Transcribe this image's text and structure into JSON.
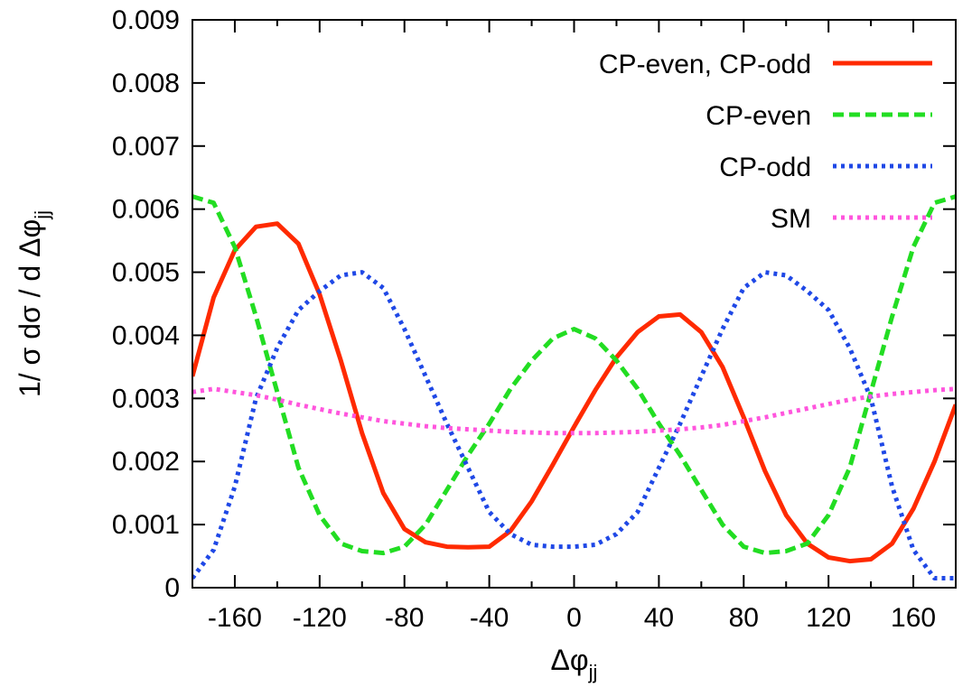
{
  "chart_data": {
    "type": "line",
    "title": "",
    "xlabel": "Δφjj",
    "xlabel_main": "Δφ",
    "xlabel_sub": "jj",
    "ylabel": "1/ σ dσ / d Δφjj",
    "ylabel_main": "1/ σ dσ / d Δφ",
    "ylabel_sub": "jj",
    "xlim": [
      -180,
      180
    ],
    "ylim": [
      0,
      0.009
    ],
    "xticks": [
      -160,
      -120,
      -80,
      -40,
      0,
      40,
      80,
      120,
      160
    ],
    "xtick_labels": [
      "-160",
      "-120",
      "-80",
      "-40",
      "0",
      "40",
      "80",
      "120",
      "160"
    ],
    "yticks": [
      0,
      0.001,
      0.002,
      0.003,
      0.004,
      0.005,
      0.006,
      0.007,
      0.008,
      0.009
    ],
    "ytick_labels": [
      "0",
      "0.001",
      "0.002",
      "0.003",
      "0.004",
      "0.005",
      "0.006",
      "0.007",
      "0.008",
      "0.009"
    ],
    "grid": false,
    "legend_position": "top-right",
    "x": [
      -180,
      -170,
      -160,
      -150,
      -140,
      -130,
      -120,
      -110,
      -100,
      -90,
      -80,
      -70,
      -60,
      -50,
      -40,
      -30,
      -20,
      -10,
      0,
      10,
      20,
      30,
      40,
      50,
      60,
      70,
      80,
      90,
      100,
      110,
      120,
      130,
      140,
      150,
      160,
      170,
      180
    ],
    "series": [
      {
        "name": "CP-even, CP-odd",
        "color": "#ff2a00",
        "dash": "solid",
        "values": [
          0.00335,
          0.0046,
          0.00535,
          0.00572,
          0.00577,
          0.00545,
          0.00465,
          0.0036,
          0.00245,
          0.0015,
          0.00093,
          0.00072,
          0.00065,
          0.00064,
          0.00065,
          0.0009,
          0.00137,
          0.00195,
          0.00255,
          0.00313,
          0.00365,
          0.00405,
          0.0043,
          0.00433,
          0.00405,
          0.0035,
          0.0027,
          0.00185,
          0.00115,
          0.0007,
          0.00048,
          0.00042,
          0.00045,
          0.0007,
          0.00125,
          0.002,
          0.0029
        ]
      },
      {
        "name": "CP-even",
        "color": "#22dd22",
        "dash": "dashed",
        "values": [
          0.0062,
          0.0061,
          0.0054,
          0.0043,
          0.0031,
          0.0019,
          0.00115,
          0.0007,
          0.00058,
          0.00055,
          0.00065,
          0.001,
          0.00155,
          0.0021,
          0.0026,
          0.00315,
          0.0036,
          0.00395,
          0.0041,
          0.00395,
          0.0036,
          0.00315,
          0.0026,
          0.0021,
          0.00155,
          0.001,
          0.00065,
          0.00055,
          0.00058,
          0.0007,
          0.00115,
          0.0019,
          0.0031,
          0.0043,
          0.0054,
          0.0061,
          0.0062
        ]
      },
      {
        "name": "CP-odd",
        "color": "#1f48e6",
        "dash": "dotted",
        "values": [
          0.00015,
          0.0006,
          0.0016,
          0.003,
          0.0038,
          0.0044,
          0.0047,
          0.00495,
          0.005,
          0.00475,
          0.0041,
          0.00335,
          0.0026,
          0.0019,
          0.0012,
          0.00085,
          0.00068,
          0.00065,
          0.00065,
          0.00068,
          0.00085,
          0.0012,
          0.0019,
          0.0026,
          0.00335,
          0.0041,
          0.00475,
          0.005,
          0.00495,
          0.0047,
          0.0044,
          0.0038,
          0.003,
          0.0016,
          0.0006,
          0.00015,
          0.00015
        ]
      },
      {
        "name": "SM",
        "color": "#ff55dd",
        "dash": "dotted",
        "values": [
          0.0031,
          0.00315,
          0.0031,
          0.00305,
          0.00298,
          0.0029,
          0.00283,
          0.00276,
          0.0027,
          0.00264,
          0.0026,
          0.00256,
          0.00253,
          0.00251,
          0.00249,
          0.00247,
          0.00246,
          0.00245,
          0.00245,
          0.00245,
          0.00246,
          0.00247,
          0.00249,
          0.00251,
          0.00254,
          0.00258,
          0.00264,
          0.0027,
          0.00277,
          0.00284,
          0.00291,
          0.00298,
          0.00303,
          0.00307,
          0.0031,
          0.00313,
          0.00315
        ]
      }
    ]
  }
}
